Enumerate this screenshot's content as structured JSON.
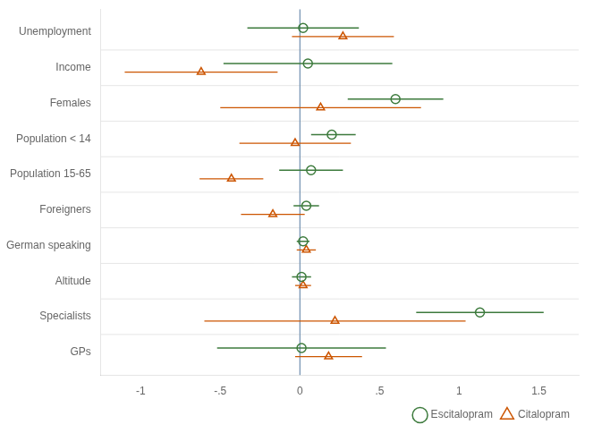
{
  "chart_data": {
    "type": "forest",
    "categories": [
      "Unemployment",
      "Income",
      "Females",
      "Population < 14",
      "Population 15-65",
      "Foreigners",
      "German speaking",
      "Altitude",
      "Specialists",
      "GPs"
    ],
    "series": [
      {
        "name": "Escitalopram",
        "color": "#3c7a3c",
        "marker": "circle",
        "values": [
          0.02,
          0.05,
          0.6,
          0.2,
          0.07,
          0.04,
          0.02,
          0.01,
          1.13,
          0.01
        ],
        "ci_lo": [
          -0.33,
          -0.48,
          0.3,
          0.07,
          -0.13,
          -0.04,
          -0.02,
          -0.05,
          0.73,
          -0.52
        ],
        "ci_hi": [
          0.37,
          0.58,
          0.9,
          0.35,
          0.27,
          0.12,
          0.06,
          0.07,
          1.53,
          0.54
        ]
      },
      {
        "name": "Citalopram",
        "color": "#cc5500",
        "marker": "triangle",
        "values": [
          0.27,
          -0.62,
          0.13,
          -0.03,
          -0.43,
          -0.17,
          0.04,
          0.02,
          0.22,
          0.18
        ],
        "ci_lo": [
          -0.05,
          -1.1,
          -0.5,
          -0.38,
          -0.63,
          -0.37,
          -0.02,
          -0.03,
          -0.6,
          -0.03
        ],
        "ci_hi": [
          0.59,
          -0.14,
          0.76,
          0.32,
          -0.23,
          0.03,
          0.1,
          0.07,
          1.04,
          0.39
        ]
      }
    ],
    "xlim": [
      -1.25,
      1.75
    ],
    "xticks": [
      -1,
      {
        "value": -0.5,
        "label": "-.5"
      },
      0,
      {
        "value": 0.5,
        "label": ".5"
      },
      1,
      1.5
    ],
    "vline": {
      "value": 0,
      "color": "#7090b0"
    },
    "grid": "y",
    "legend": "lower right"
  }
}
